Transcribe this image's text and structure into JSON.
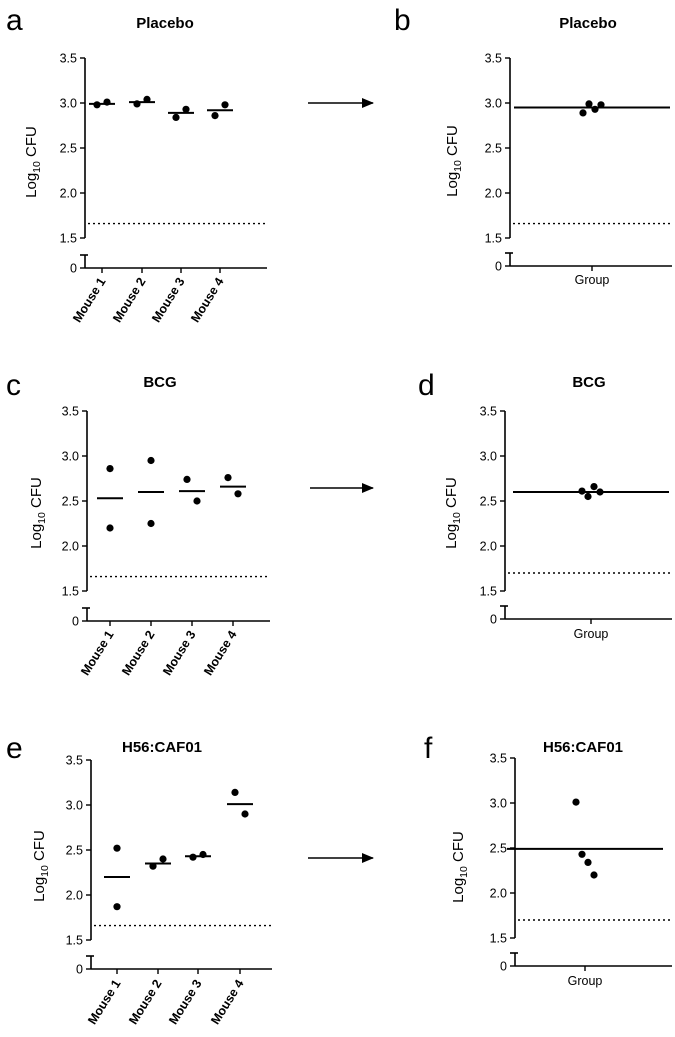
{
  "figure": {
    "arrow_glyph": "→"
  },
  "chart_data": [
    {
      "id": "a",
      "panel_letter": "a",
      "type": "scatter",
      "title": "Placebo",
      "ylabel_main": "Log",
      "ylabel_sub": "10",
      "ylabel_unit": " CFU",
      "categories": [
        "Mouse 1",
        "Mouse 2",
        "Mouse 3",
        "Mouse 4"
      ],
      "points": [
        [
          2.98,
          3.01
        ],
        [
          2.99,
          3.04
        ],
        [
          2.84,
          2.93
        ],
        [
          2.86,
          2.98
        ]
      ],
      "means": [
        2.99,
        3.01,
        2.89,
        2.92
      ],
      "detection_limit": 1.66,
      "yticks": [
        0,
        1.5,
        2.0,
        2.5,
        3.0,
        3.5
      ],
      "ytick_labels": [
        "0",
        "1.5",
        "2.0",
        "2.5",
        "3.0",
        "3.5"
      ],
      "ylim": [
        1.5,
        3.5
      ],
      "axis_break": true
    },
    {
      "id": "b",
      "panel_letter": "b",
      "type": "scatter",
      "title": "Placebo",
      "ylabel_main": "Log",
      "ylabel_sub": "10",
      "ylabel_unit": " CFU",
      "categories": [
        "Group"
      ],
      "points": [
        [
          2.89,
          2.99,
          2.93,
          2.98
        ]
      ],
      "means": [
        2.95
      ],
      "detection_limit": 1.66,
      "yticks": [
        0,
        1.5,
        2.0,
        2.5,
        3.0,
        3.5
      ],
      "ytick_labels": [
        "0",
        "1.5",
        "2.0",
        "2.5",
        "3.0",
        "3.5"
      ],
      "ylim": [
        1.5,
        3.5
      ],
      "axis_break": true
    },
    {
      "id": "c",
      "panel_letter": "c",
      "type": "scatter",
      "title": "BCG",
      "ylabel_main": "Log",
      "ylabel_sub": "10",
      "ylabel_unit": " CFU",
      "categories": [
        "Mouse 1",
        "Mouse 2",
        "Mouse 3",
        "Mouse 4"
      ],
      "points": [
        [
          2.86,
          2.2
        ],
        [
          2.95,
          2.25
        ],
        [
          2.74,
          2.5
        ],
        [
          2.76,
          2.58
        ]
      ],
      "means": [
        2.53,
        2.6,
        2.61,
        2.66
      ],
      "detection_limit": 1.66,
      "yticks": [
        0,
        1.5,
        2.0,
        2.5,
        3.0,
        3.5
      ],
      "ytick_labels": [
        "0",
        "1.5",
        "2.0",
        "2.5",
        "3.0",
        "3.5"
      ],
      "ylim": [
        1.5,
        3.5
      ],
      "axis_break": true
    },
    {
      "id": "d",
      "panel_letter": "d",
      "type": "scatter",
      "title": "BCG",
      "ylabel_main": "Log",
      "ylabel_sub": "10",
      "ylabel_unit": " CFU",
      "categories": [
        "Group"
      ],
      "points": [
        [
          2.61,
          2.55,
          2.66,
          2.6
        ]
      ],
      "means": [
        2.6
      ],
      "detection_limit": 1.7,
      "yticks": [
        0,
        1.5,
        2.0,
        2.5,
        3.0,
        3.5
      ],
      "ytick_labels": [
        "0",
        "1.5",
        "2.0",
        "2.5",
        "3.0",
        "3.5"
      ],
      "ylim": [
        1.5,
        3.5
      ],
      "axis_break": true
    },
    {
      "id": "e",
      "panel_letter": "e",
      "type": "scatter",
      "title": "H56:CAF01",
      "ylabel_main": "Log",
      "ylabel_sub": "10",
      "ylabel_unit": " CFU",
      "categories": [
        "Mouse 1",
        "Mouse 2",
        "Mouse 3",
        "Mouse 4"
      ],
      "points": [
        [
          2.52,
          1.87
        ],
        [
          2.32,
          2.4
        ],
        [
          2.42,
          2.45
        ],
        [
          3.14,
          2.9
        ]
      ],
      "means": [
        2.2,
        2.35,
        2.43,
        3.01
      ],
      "detection_limit": 1.66,
      "yticks": [
        0,
        1.5,
        2.0,
        2.5,
        3.0,
        3.5
      ],
      "ytick_labels": [
        "0",
        "1.5",
        "2.0",
        "2.5",
        "3.0",
        "3.5"
      ],
      "ylim": [
        1.5,
        3.5
      ],
      "axis_break": true
    },
    {
      "id": "f",
      "panel_letter": "f",
      "type": "scatter",
      "title": "H56:CAF01",
      "ylabel_main": "Log",
      "ylabel_sub": "10",
      "ylabel_unit": " CFU",
      "categories": [
        "Group"
      ],
      "points": [
        [
          3.01,
          2.43,
          2.34,
          2.2
        ]
      ],
      "means": [
        2.49
      ],
      "detection_limit": 1.7,
      "yticks": [
        0,
        1.5,
        2.0,
        2.5,
        3.0,
        3.5
      ],
      "ytick_labels": [
        "0",
        "1.5",
        "2.0",
        "2.5",
        "3.0",
        "3.5"
      ],
      "ylim": [
        1.5,
        3.5
      ],
      "axis_break": true
    }
  ]
}
